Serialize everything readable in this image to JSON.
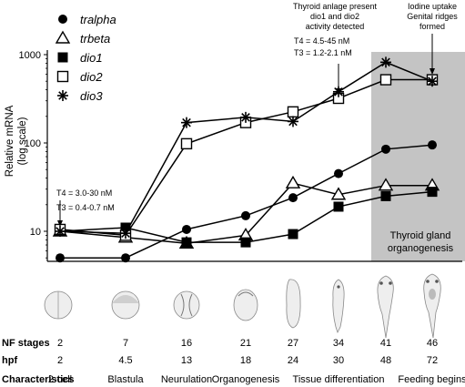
{
  "chart_data": {
    "type": "line",
    "ylabel_line1": "Relative mRNA",
    "ylabel_line2": "(log scale)",
    "y_scale": "log",
    "ylim": [
      4,
      1500
    ],
    "y_ticks": [
      {
        "value": 10,
        "label": "10"
      },
      {
        "value": 100,
        "label": "100"
      },
      {
        "value": 1000,
        "label": "1000"
      }
    ],
    "x": [
      2,
      7,
      16,
      21,
      27,
      34,
      41,
      46
    ],
    "series": [
      {
        "name": "tralpha",
        "marker": "filled-circle",
        "values": [
          5,
          5,
          10.5,
          15,
          24,
          45,
          85,
          95
        ]
      },
      {
        "name": "trbeta",
        "marker": "open-triangle",
        "values": [
          10,
          8.5,
          7.3,
          9,
          35,
          26,
          33,
          33
        ]
      },
      {
        "name": "dio1",
        "marker": "filled-square",
        "values": [
          10,
          11,
          7.5,
          7.5,
          9.3,
          19,
          25,
          28
        ]
      },
      {
        "name": "dio2",
        "marker": "open-square",
        "values": [
          10.5,
          9,
          98,
          170,
          225,
          320,
          520,
          520
        ]
      },
      {
        "name": "dio3",
        "marker": "asterisk",
        "values": [
          10,
          9.5,
          170,
          195,
          175,
          380,
          820,
          500
        ]
      }
    ],
    "shaded_region": {
      "x_from": 41,
      "x_to": 46,
      "color": "#c4c4c4",
      "label_line1": "Thyroid gland",
      "label_line2": "organogenesis"
    },
    "annotations": [
      {
        "lines": [
          "T4 = 3.0-30 nM",
          "T3 = 0.4-0.7 nM"
        ],
        "x": 2
      },
      {
        "lines": [
          "Thyroid anlage present",
          "dio1 and dio2",
          "activity detected"
        ],
        "sub_lines": [
          "T4 = 4.5-45 nM",
          "T3 = 1.2-2.1 nM"
        ],
        "x": 34
      },
      {
        "lines": [
          "Iodine uptake",
          "Genital ridges",
          "formed"
        ],
        "x": 46
      }
    ],
    "table": {
      "row_labels": [
        "NF stages",
        "hpf",
        "Characteristics"
      ],
      "nf_stages": [
        "2",
        "7",
        "16",
        "21",
        "27",
        "34",
        "41",
        "46"
      ],
      "hpf": [
        "2",
        "4.5",
        "13",
        "18",
        "24",
        "30",
        "48",
        "72"
      ],
      "characteristics": [
        {
          "label": "2-cell",
          "stage_index": 0
        },
        {
          "label": "Blastula",
          "stage_index": 1
        },
        {
          "label": "Neurulation",
          "stage_index": 2
        },
        {
          "label": "Organogenesis",
          "stage_index": 3
        },
        {
          "label": "Tissue differentiation",
          "stage_index": 5
        },
        {
          "label": "Feeding begins",
          "stage_index": 7
        }
      ]
    },
    "embryo_illustrations": [
      "2-cell embryo",
      "blastula",
      "neurula",
      "organogenesis embryo",
      "tailbud embryo",
      "tadpole",
      "tadpole",
      "feeding tadpole"
    ],
    "legend_position": "top-left",
    "line_color": "#000000",
    "shade_color": "#c4c4c4"
  }
}
